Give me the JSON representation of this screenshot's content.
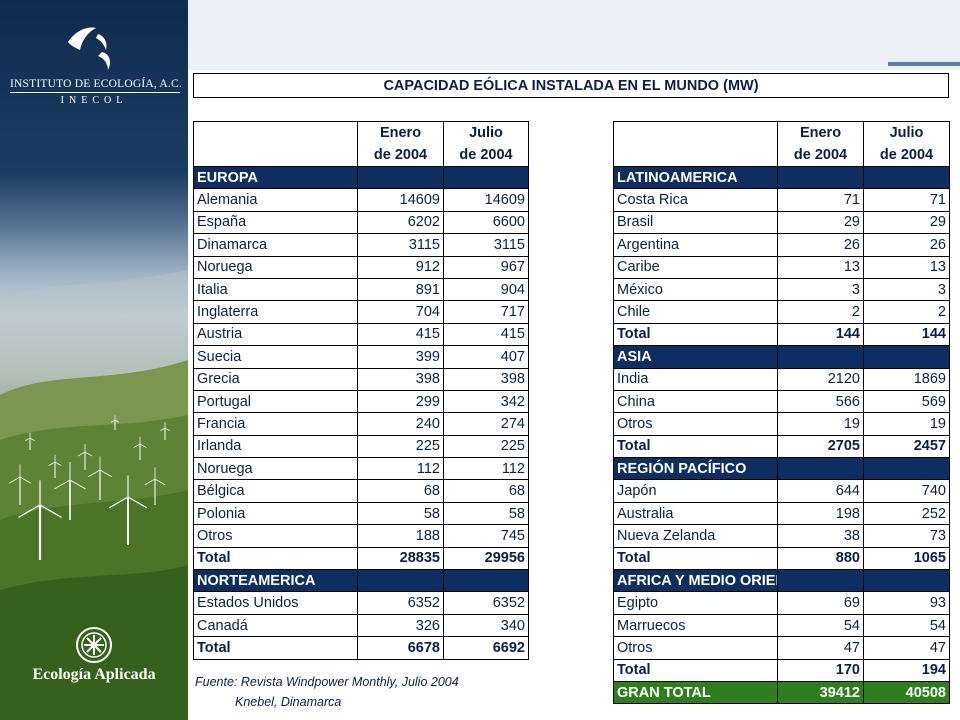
{
  "sidebar": {
    "org_name": "INSTITUTO DE ECOLOGÍA, A.C.",
    "org_abbrev": "INECOL",
    "unit_label": "Ecología Aplicada"
  },
  "title": "CAPACIDAD EÓLICA INSTALADA EN EL MUNDO (MW)",
  "columns": {
    "jan_line1": "Enero",
    "jan_line2": "de 2004",
    "jul_line1": "Julio",
    "jul_line2": "de 2004"
  },
  "left_table": {
    "rows": [
      {
        "type": "section",
        "name": "EUROPA"
      },
      {
        "type": "row",
        "name": "Alemania",
        "jan": "14609",
        "jul": "14609"
      },
      {
        "type": "row",
        "name": "España",
        "jan": "6202",
        "jul": "6600"
      },
      {
        "type": "row",
        "name": "Dinamarca",
        "jan": "3115",
        "jul": "3115"
      },
      {
        "type": "row",
        "name": "Noruega",
        "jan": "912",
        "jul": "967"
      },
      {
        "type": "row",
        "name": "Italia",
        "jan": "891",
        "jul": "904"
      },
      {
        "type": "row",
        "name": "Inglaterra",
        "jan": "704",
        "jul": "717"
      },
      {
        "type": "row",
        "name": "Austria",
        "jan": "415",
        "jul": "415"
      },
      {
        "type": "row",
        "name": "Suecia",
        "jan": "399",
        "jul": "407"
      },
      {
        "type": "row",
        "name": "Grecia",
        "jan": "398",
        "jul": "398"
      },
      {
        "type": "row",
        "name": "Portugal",
        "jan": "299",
        "jul": "342"
      },
      {
        "type": "row",
        "name": "Francia",
        "jan": "240",
        "jul": "274"
      },
      {
        "type": "row",
        "name": "Irlanda",
        "jan": "225",
        "jul": "225"
      },
      {
        "type": "row",
        "name": "Noruega",
        "jan": "112",
        "jul": "112"
      },
      {
        "type": "row",
        "name": "Bélgica",
        "jan": "68",
        "jul": "68"
      },
      {
        "type": "row",
        "name": "Polonia",
        "jan": "58",
        "jul": "58"
      },
      {
        "type": "row",
        "name": "Otros",
        "jan": "188",
        "jul": "745"
      },
      {
        "type": "total",
        "name": "Total",
        "jan": "28835",
        "jul": "29956"
      },
      {
        "type": "section",
        "name": "NORTEAMERICA"
      },
      {
        "type": "row",
        "name": "Estados Unidos",
        "jan": "6352",
        "jul": "6352"
      },
      {
        "type": "row",
        "name": "Canadá",
        "jan": "326",
        "jul": "340"
      },
      {
        "type": "total",
        "name": "Total",
        "jan": "6678",
        "jul": "6692"
      }
    ]
  },
  "right_table": {
    "rows": [
      {
        "type": "section",
        "name": "LATINOAMERICA"
      },
      {
        "type": "row",
        "name": "Costa Rica",
        "jan": "71",
        "jul": "71"
      },
      {
        "type": "row",
        "name": "Brasil",
        "jan": "29",
        "jul": "29"
      },
      {
        "type": "row",
        "name": "Argentina",
        "jan": "26",
        "jul": "26"
      },
      {
        "type": "row",
        "name": "Caribe",
        "jan": "13",
        "jul": "13"
      },
      {
        "type": "row",
        "name": "México",
        "jan": "3",
        "jul": "3"
      },
      {
        "type": "row",
        "name": "Chile",
        "jan": "2",
        "jul": "2"
      },
      {
        "type": "total",
        "name": "Total",
        "jan": "144",
        "jul": "144"
      },
      {
        "type": "section",
        "name": "ASIA"
      },
      {
        "type": "row",
        "name": "India",
        "jan": "2120",
        "jul": "1869"
      },
      {
        "type": "row",
        "name": "China",
        "jan": "566",
        "jul": "569"
      },
      {
        "type": "row",
        "name": "Otros",
        "jan": "19",
        "jul": "19"
      },
      {
        "type": "total",
        "name": "Total",
        "jan": "2705",
        "jul": "2457"
      },
      {
        "type": "section",
        "name": "REGIÓN PACÍFICO"
      },
      {
        "type": "row",
        "name": "Japón",
        "jan": "644",
        "jul": "740"
      },
      {
        "type": "row",
        "name": "Australia",
        "jan": "198",
        "jul": "252"
      },
      {
        "type": "row",
        "name": "Nueva Zelanda",
        "jan": "38",
        "jul": "73"
      },
      {
        "type": "total",
        "name": "Total",
        "jan": "880",
        "jul": "1065"
      },
      {
        "type": "section",
        "name": "AFRICA Y MEDIO ORIENTE"
      },
      {
        "type": "row",
        "name": "Egipto",
        "jan": "69",
        "jul": "93"
      },
      {
        "type": "row",
        "name": "Marruecos",
        "jan": "54",
        "jul": "54"
      },
      {
        "type": "row",
        "name": "Otros",
        "jan": "47",
        "jul": "47"
      },
      {
        "type": "total",
        "name": "Total",
        "jan": "170",
        "jul": "194"
      },
      {
        "type": "grand",
        "name": "GRAN TOTAL",
        "jan": "39412",
        "jul": "40508"
      }
    ]
  },
  "source": {
    "line1": "Fuente: Revista Windpower Monthly, Julio 2004",
    "line2": "Knebel, Dinamarca"
  },
  "colors": {
    "section_bg": "#0e2d61",
    "grand_total_bg": "#2e7d1e",
    "text": "#0b1f4a",
    "accent": "#5c7da6"
  },
  "icons": [
    "inecol-bird-logo-icon",
    "ecologia-aplicada-emblem-icon",
    "wind-turbine-icon"
  ]
}
